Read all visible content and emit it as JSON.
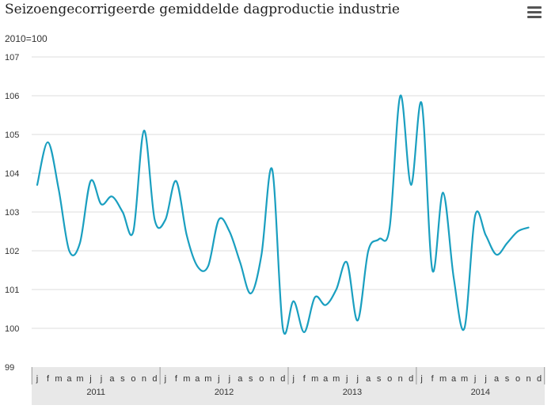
{
  "title": "Seizoengecorrigeerde gemiddelde dagproductie industrie",
  "menu_icon": "hamburger-menu-icon",
  "colors": {
    "line": "#1a9fc0",
    "grid": "#dddddd",
    "axis_band": "#e8e8e8"
  },
  "chart_data": {
    "type": "line",
    "title": "Seizoengecorrigeerde gemiddelde dagproductie industrie",
    "ylabel": "2010=100",
    "xlabel": "",
    "ylim": [
      99,
      107
    ],
    "yticks": [
      99,
      100,
      101,
      102,
      103,
      104,
      105,
      106,
      107
    ],
    "grid": true,
    "legend": "none",
    "x": [
      "j",
      "f",
      "m",
      "a",
      "m",
      "j",
      "j",
      "a",
      "s",
      "o",
      "n",
      "d",
      "j",
      "f",
      "m",
      "a",
      "m",
      "j",
      "j",
      "a",
      "s",
      "o",
      "n",
      "d",
      "j",
      "f",
      "m",
      "a",
      "m",
      "j",
      "j",
      "a",
      "s",
      "o",
      "n",
      "d",
      "j",
      "f",
      "m",
      "a",
      "m",
      "j",
      "j",
      "a",
      "s",
      "o",
      "n",
      "d"
    ],
    "years": [
      "2011",
      "2012",
      "2013",
      "2014"
    ],
    "series": [
      {
        "values": [
          103.7,
          104.8,
          103.6,
          102.0,
          102.2,
          103.8,
          103.2,
          103.4,
          103.0,
          102.5,
          105.1,
          102.8,
          102.8,
          103.8,
          102.4,
          101.6,
          101.6,
          102.8,
          102.5,
          101.7,
          100.9,
          101.9,
          104.1,
          100.0,
          100.7,
          99.9,
          100.8,
          100.6,
          101.0,
          101.7,
          100.2,
          102.0,
          102.3,
          102.6,
          106.0,
          103.7,
          105.8,
          101.5,
          103.5,
          101.3,
          100.0,
          102.9,
          102.4,
          101.9,
          102.2,
          102.5,
          102.6,
          null
        ]
      }
    ]
  }
}
